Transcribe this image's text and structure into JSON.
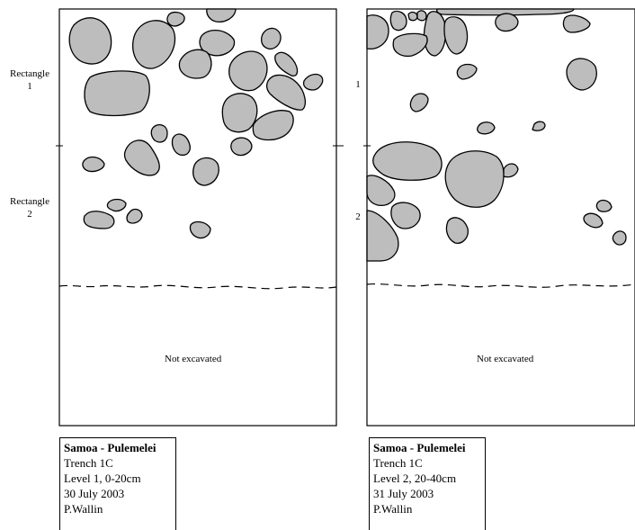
{
  "left_plan": {
    "rect1_label": [
      "Rectangle",
      "1"
    ],
    "rect2_label": [
      "Rectangle",
      "2"
    ],
    "not_excavated": "Not excavated",
    "caption": {
      "title": "Samoa - Pulemelei",
      "trench": "Trench 1C",
      "level": "Level 1, 0-20cm",
      "date": "30 July 2003",
      "author": "P.Wallin"
    }
  },
  "right_plan": {
    "rect1_label": "1",
    "rect2_label": "2",
    "not_excavated": "Not excavated",
    "caption": {
      "title": "Samoa - Pulemelei",
      "trench": "Trench 1C",
      "level": "Level 2, 20-40cm",
      "date": "31 July 2003",
      "author": "P.Wallin"
    }
  },
  "colors": {
    "stone_fill": "#bdbdbd",
    "outline": "#000000"
  }
}
